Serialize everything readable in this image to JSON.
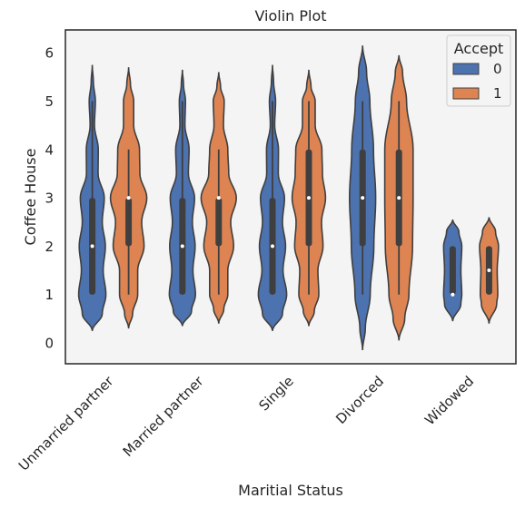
{
  "chart_data": {
    "type": "violin",
    "title": "Violin Plot",
    "xlabel": "Maritial Status",
    "ylabel": "Coffee House",
    "categories": [
      "Unmarried partner",
      "Married partner",
      "Single",
      "Divorced",
      "Widowed"
    ],
    "ylim": [
      -0.45,
      6.45
    ],
    "yticks": [
      0,
      1,
      2,
      3,
      4,
      5,
      6
    ],
    "grid": false,
    "legend": {
      "title": "Accept",
      "position": "top-right"
    },
    "series": [
      {
        "name": "0",
        "color": "#4c72b0",
        "stats": [
          {
            "q1": 1,
            "median": 2,
            "q3": 3,
            "whisker_low": 1,
            "whisker_high": 5,
            "kde_range": [
              0.25,
              5.75
            ]
          },
          {
            "q1": 1,
            "median": 2,
            "q3": 3,
            "whisker_low": 1,
            "whisker_high": 5,
            "kde_range": [
              0.35,
              5.65
            ]
          },
          {
            "q1": 1,
            "median": 2,
            "q3": 3,
            "whisker_low": 1,
            "whisker_high": 5,
            "kde_range": [
              0.25,
              5.75
            ]
          },
          {
            "q1": 2,
            "median": 3,
            "q3": 4,
            "whisker_low": 1,
            "whisker_high": 5,
            "kde_range": [
              -0.15,
              6.15
            ]
          },
          {
            "q1": 1,
            "median": 1,
            "q3": 2,
            "whisker_low": 1,
            "whisker_high": 2,
            "kde_range": [
              0.45,
              2.55
            ]
          }
        ]
      },
      {
        "name": "1",
        "color": "#dd8452",
        "stats": [
          {
            "q1": 2,
            "median": 3,
            "q3": 3,
            "whisker_low": 1,
            "whisker_high": 4,
            "kde_range": [
              0.3,
              5.7
            ]
          },
          {
            "q1": 2,
            "median": 3,
            "q3": 3,
            "whisker_low": 1,
            "whisker_high": 4,
            "kde_range": [
              0.4,
              5.6
            ]
          },
          {
            "q1": 2,
            "median": 3,
            "q3": 4,
            "whisker_low": 1,
            "whisker_high": 5,
            "kde_range": [
              0.35,
              5.65
            ]
          },
          {
            "q1": 2,
            "median": 3,
            "q3": 4,
            "whisker_low": 1,
            "whisker_high": 5,
            "kde_range": [
              0.05,
              5.95
            ]
          },
          {
            "q1": 1,
            "median": 1.5,
            "q3": 2,
            "whisker_low": 1,
            "whisker_high": 2,
            "kde_range": [
              0.4,
              2.6
            ]
          }
        ]
      }
    ],
    "density_profiles": [
      [
        [
          [
            0.25,
            0
          ],
          [
            0.6,
            0.55
          ],
          [
            1,
            0.75
          ],
          [
            1.5,
            0.6
          ],
          [
            2,
            0.72
          ],
          [
            2.5,
            0.55
          ],
          [
            3,
            0.66
          ],
          [
            3.5,
            0.32
          ],
          [
            4,
            0.33
          ],
          [
            4.5,
            0.12
          ],
          [
            5,
            0.17
          ],
          [
            5.4,
            0.06
          ],
          [
            5.75,
            0
          ]
        ],
        [
          [
            0.3,
            0
          ],
          [
            0.6,
            0.22
          ],
          [
            1,
            0.5
          ],
          [
            1.5,
            0.5
          ],
          [
            2,
            0.85
          ],
          [
            2.5,
            0.72
          ],
          [
            3,
            1.0
          ],
          [
            3.5,
            0.62
          ],
          [
            4,
            0.6
          ],
          [
            4.5,
            0.28
          ],
          [
            5,
            0.28
          ],
          [
            5.35,
            0.1
          ],
          [
            5.7,
            0
          ]
        ]
      ],
      [
        [
          [
            0.35,
            0
          ],
          [
            0.65,
            0.5
          ],
          [
            1,
            0.72
          ],
          [
            1.5,
            0.58
          ],
          [
            2,
            0.7
          ],
          [
            2.5,
            0.55
          ],
          [
            3,
            0.67
          ],
          [
            3.5,
            0.33
          ],
          [
            4,
            0.37
          ],
          [
            4.5,
            0.14
          ],
          [
            5,
            0.17
          ],
          [
            5.35,
            0.06
          ],
          [
            5.65,
            0
          ]
        ],
        [
          [
            0.4,
            0
          ],
          [
            0.7,
            0.28
          ],
          [
            1,
            0.5
          ],
          [
            1.5,
            0.5
          ],
          [
            2,
            0.82
          ],
          [
            2.5,
            0.66
          ],
          [
            3,
            0.97
          ],
          [
            3.5,
            0.55
          ],
          [
            4,
            0.5
          ],
          [
            4.5,
            0.26
          ],
          [
            5,
            0.3
          ],
          [
            5.3,
            0.1
          ],
          [
            5.6,
            0
          ]
        ]
      ],
      [
        [
          [
            0.25,
            0
          ],
          [
            0.6,
            0.55
          ],
          [
            1,
            0.78
          ],
          [
            1.5,
            0.58
          ],
          [
            2,
            0.72
          ],
          [
            2.5,
            0.55
          ],
          [
            3,
            0.66
          ],
          [
            3.5,
            0.32
          ],
          [
            4,
            0.33
          ],
          [
            4.5,
            0.12
          ],
          [
            5,
            0.17
          ],
          [
            5.4,
            0.06
          ],
          [
            5.75,
            0
          ]
        ],
        [
          [
            0.35,
            0
          ],
          [
            0.65,
            0.3
          ],
          [
            1,
            0.55
          ],
          [
            1.5,
            0.5
          ],
          [
            2,
            0.78
          ],
          [
            2.5,
            0.7
          ],
          [
            3,
            0.92
          ],
          [
            3.5,
            0.75
          ],
          [
            4,
            0.72
          ],
          [
            4.5,
            0.35
          ],
          [
            5,
            0.35
          ],
          [
            5.3,
            0.12
          ],
          [
            5.65,
            0
          ]
        ]
      ],
      [
        [
          [
            -0.15,
            0
          ],
          [
            0.3,
            0.15
          ],
          [
            1,
            0.42
          ],
          [
            2,
            0.62
          ],
          [
            3,
            0.72
          ],
          [
            4,
            0.6
          ],
          [
            5,
            0.4
          ],
          [
            5.6,
            0.22
          ],
          [
            6.15,
            0
          ]
        ],
        [
          [
            0.05,
            0
          ],
          [
            0.5,
            0.32
          ],
          [
            1,
            0.55
          ],
          [
            2,
            0.75
          ],
          [
            3,
            0.78
          ],
          [
            4,
            0.78
          ],
          [
            5,
            0.42
          ],
          [
            5.6,
            0.2
          ],
          [
            5.95,
            0
          ]
        ]
      ],
      [
        [
          [
            0.45,
            0
          ],
          [
            0.8,
            0.45
          ],
          [
            1,
            0.5
          ],
          [
            1.5,
            0.45
          ],
          [
            2,
            0.5
          ],
          [
            2.3,
            0.34
          ],
          [
            2.55,
            0
          ]
        ],
        [
          [
            0.4,
            0
          ],
          [
            0.8,
            0.42
          ],
          [
            1,
            0.48
          ],
          [
            1.5,
            0.45
          ],
          [
            2,
            0.52
          ],
          [
            2.3,
            0.36
          ],
          [
            2.6,
            0
          ]
        ]
      ]
    ]
  }
}
